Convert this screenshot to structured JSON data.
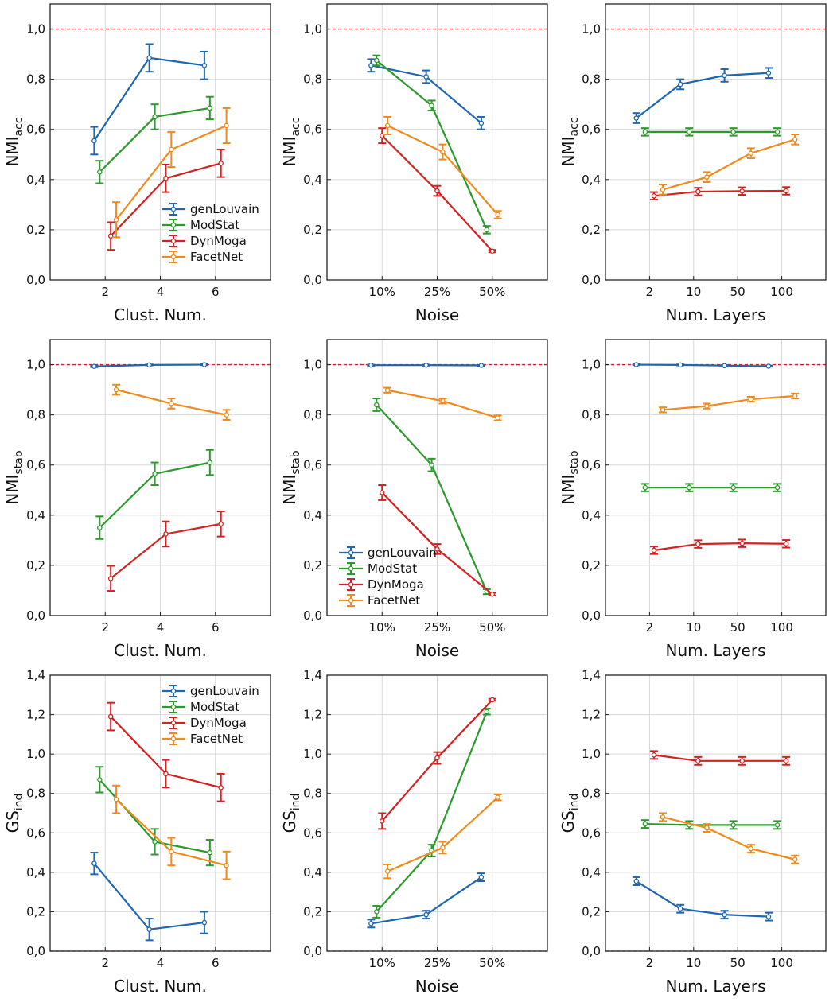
{
  "colors": {
    "genLouvain": "#1f66b0",
    "ModStat": "#2b9a2b",
    "DynMoga": "#d52020",
    "FacetNet": "#f08a1c",
    "reference": "#c62828",
    "grid": "#d8d8d8",
    "axis": "#222222"
  },
  "chart_data": [
    {
      "id": "acc-clust",
      "type": "line",
      "row": 0,
      "col": 0,
      "ylabel_main": "NMI",
      "ylabel_sub": "acc",
      "xlabel": "Clust. Num.",
      "ylim": [
        0,
        1.1
      ],
      "yticks": [
        "0,0",
        "0,2",
        "0,4",
        "0,6",
        "0,8",
        "1,0"
      ],
      "yvalues": [
        0,
        0.2,
        0.4,
        0.6,
        0.8,
        1.0
      ],
      "xlim": [
        0,
        8
      ],
      "xticks": [
        "2",
        "4",
        "6"
      ],
      "xtickpos": [
        2,
        4,
        6
      ],
      "reference": 1.0,
      "legend": "bottom-right",
      "series": [
        {
          "name": "genLouvain",
          "x": [
            1.6,
            3.6,
            5.6
          ],
          "y": [
            0.555,
            0.885,
            0.855
          ],
          "err": [
            0.055,
            0.055,
            0.055
          ]
        },
        {
          "name": "ModStat",
          "x": [
            1.8,
            3.8,
            5.8
          ],
          "y": [
            0.43,
            0.65,
            0.685
          ],
          "err": [
            0.045,
            0.05,
            0.045
          ]
        },
        {
          "name": "DynMoga",
          "x": [
            2.2,
            4.2,
            6.2
          ],
          "y": [
            0.175,
            0.405,
            0.465
          ],
          "err": [
            0.055,
            0.055,
            0.055
          ]
        },
        {
          "name": "FacetNet",
          "x": [
            2.4,
            4.4,
            6.4
          ],
          "y": [
            0.24,
            0.52,
            0.615
          ],
          "err": [
            0.07,
            0.07,
            0.07
          ]
        }
      ]
    },
    {
      "id": "acc-noise",
      "type": "line",
      "row": 0,
      "col": 1,
      "ylabel_main": "NMI",
      "ylabel_sub": "acc",
      "xlabel": "Noise",
      "ylim": [
        0,
        1.1
      ],
      "yticks": [
        "0,0",
        "0,2",
        "0,4",
        "0,6",
        "0,8",
        "1,0"
      ],
      "yvalues": [
        0,
        0.2,
        0.4,
        0.6,
        0.8,
        1.0
      ],
      "xlim": [
        0,
        4
      ],
      "xticks": [
        "10%",
        "25%",
        "50%"
      ],
      "xtickpos": [
        1,
        2,
        3
      ],
      "reference": 1.0,
      "legend": "none",
      "series": [
        {
          "name": "genLouvain",
          "x": [
            0.8,
            1.8,
            2.8
          ],
          "y": [
            0.855,
            0.81,
            0.625
          ],
          "err": [
            0.025,
            0.025,
            0.025
          ]
        },
        {
          "name": "ModStat",
          "x": [
            0.9,
            1.9,
            2.9
          ],
          "y": [
            0.875,
            0.695,
            0.2
          ],
          "err": [
            0.02,
            0.02,
            0.015
          ]
        },
        {
          "name": "DynMoga",
          "x": [
            1.0,
            2.0,
            3.0
          ],
          "y": [
            0.575,
            0.355,
            0.115
          ],
          "err": [
            0.03,
            0.02,
            0.005
          ]
        },
        {
          "name": "FacetNet",
          "x": [
            1.1,
            2.1,
            3.1
          ],
          "y": [
            0.615,
            0.51,
            0.26
          ],
          "err": [
            0.035,
            0.03,
            0.015
          ]
        }
      ]
    },
    {
      "id": "acc-layers",
      "type": "line",
      "row": 0,
      "col": 2,
      "ylabel_main": "NMI",
      "ylabel_sub": "acc",
      "xlabel": "Num. Layers",
      "ylim": [
        0,
        1.1
      ],
      "yticks": [
        "0,0",
        "0,2",
        "0,4",
        "0,6",
        "0,8",
        "1,0"
      ],
      "yvalues": [
        0,
        0.2,
        0.4,
        0.6,
        0.8,
        1.0
      ],
      "xlim": [
        0,
        5
      ],
      "xticks": [
        "2",
        "10",
        "50",
        "100"
      ],
      "xtickpos": [
        1,
        2,
        3,
        4
      ],
      "reference": 1.0,
      "legend": "none",
      "series": [
        {
          "name": "genLouvain",
          "x": [
            0.7,
            1.7,
            2.7,
            3.7
          ],
          "y": [
            0.645,
            0.78,
            0.815,
            0.825
          ],
          "err": [
            0.02,
            0.02,
            0.025,
            0.02
          ]
        },
        {
          "name": "ModStat",
          "x": [
            0.9,
            1.9,
            2.9,
            3.9
          ],
          "y": [
            0.59,
            0.59,
            0.59,
            0.59
          ],
          "err": [
            0.015,
            0.015,
            0.015,
            0.015
          ]
        },
        {
          "name": "DynMoga",
          "x": [
            1.1,
            2.1,
            3.1,
            4.1
          ],
          "y": [
            0.335,
            0.352,
            0.354,
            0.355
          ],
          "err": [
            0.015,
            0.015,
            0.015,
            0.015
          ]
        },
        {
          "name": "FacetNet",
          "x": [
            1.3,
            2.3,
            3.3,
            4.3
          ],
          "y": [
            0.36,
            0.41,
            0.505,
            0.56
          ],
          "err": [
            0.02,
            0.02,
            0.02,
            0.02
          ]
        }
      ]
    },
    {
      "id": "stab-clust",
      "type": "line",
      "row": 1,
      "col": 0,
      "ylabel_main": "NMI",
      "ylabel_sub": "stab",
      "xlabel": "Clust. Num.",
      "ylim": [
        0,
        1.1
      ],
      "yticks": [
        "0,0",
        "0,2",
        "0,4",
        "0,6",
        "0,8",
        "1,0"
      ],
      "yvalues": [
        0,
        0.2,
        0.4,
        0.6,
        0.8,
        1.0
      ],
      "xlim": [
        0,
        8
      ],
      "xticks": [
        "2",
        "4",
        "6"
      ],
      "xtickpos": [
        2,
        4,
        6
      ],
      "reference": 1.0,
      "legend": "none",
      "series": [
        {
          "name": "genLouvain",
          "x": [
            1.6,
            3.6,
            5.6
          ],
          "y": [
            0.993,
            0.999,
            1.0
          ],
          "err": [
            0.003,
            0.002,
            0.002
          ]
        },
        {
          "name": "ModStat",
          "x": [
            1.8,
            3.8,
            5.8
          ],
          "y": [
            0.35,
            0.565,
            0.61
          ],
          "err": [
            0.045,
            0.045,
            0.05
          ]
        },
        {
          "name": "DynMoga",
          "x": [
            2.2,
            4.2,
            6.2
          ],
          "y": [
            0.148,
            0.325,
            0.365
          ],
          "err": [
            0.05,
            0.05,
            0.05
          ]
        },
        {
          "name": "FacetNet",
          "x": [
            2.4,
            4.4,
            6.4
          ],
          "y": [
            0.9,
            0.845,
            0.8
          ],
          "err": [
            0.02,
            0.02,
            0.02
          ]
        }
      ]
    },
    {
      "id": "stab-noise",
      "type": "line",
      "row": 1,
      "col": 1,
      "ylabel_main": "NMI",
      "ylabel_sub": "stab",
      "xlabel": "Noise",
      "ylim": [
        0,
        1.1
      ],
      "yticks": [
        "0,0",
        "0,2",
        "0,4",
        "0,6",
        "0,8",
        "1,0"
      ],
      "yvalues": [
        0,
        0.2,
        0.4,
        0.6,
        0.8,
        1.0
      ],
      "xlim": [
        0,
        4
      ],
      "xticks": [
        "10%",
        "25%",
        "50%"
      ],
      "xtickpos": [
        1,
        2,
        3
      ],
      "reference": 1.0,
      "legend": "bottom-left",
      "series": [
        {
          "name": "genLouvain",
          "x": [
            0.8,
            1.8,
            2.8
          ],
          "y": [
            0.998,
            0.998,
            0.997
          ],
          "err": [
            0.002,
            0.002,
            0.002
          ]
        },
        {
          "name": "ModStat",
          "x": [
            0.9,
            1.9,
            2.9
          ],
          "y": [
            0.84,
            0.6,
            0.095
          ],
          "err": [
            0.025,
            0.025,
            0.01
          ]
        },
        {
          "name": "DynMoga",
          "x": [
            1.0,
            2.0,
            3.0
          ],
          "y": [
            0.49,
            0.265,
            0.085
          ],
          "err": [
            0.03,
            0.02,
            0.005
          ]
        },
        {
          "name": "FacetNet",
          "x": [
            1.1,
            2.1,
            3.1
          ],
          "y": [
            0.898,
            0.855,
            0.788
          ],
          "err": [
            0.01,
            0.01,
            0.01
          ]
        }
      ]
    },
    {
      "id": "stab-layers",
      "type": "line",
      "row": 1,
      "col": 2,
      "ylabel_main": "NMI",
      "ylabel_sub": "stab",
      "xlabel": "Num. Layers",
      "ylim": [
        0,
        1.1
      ],
      "yticks": [
        "0,0",
        "0,2",
        "0,4",
        "0,6",
        "0,8",
        "1,0"
      ],
      "yvalues": [
        0,
        0.2,
        0.4,
        0.6,
        0.8,
        1.0
      ],
      "xlim": [
        0,
        5
      ],
      "xticks": [
        "2",
        "10",
        "50",
        "100"
      ],
      "xtickpos": [
        1,
        2,
        3,
        4
      ],
      "reference": 1.0,
      "legend": "none",
      "series": [
        {
          "name": "genLouvain",
          "x": [
            0.7,
            1.7,
            2.7,
            3.7
          ],
          "y": [
            1.0,
            0.999,
            0.996,
            0.994
          ],
          "err": [
            0.002,
            0.002,
            0.002,
            0.002
          ]
        },
        {
          "name": "ModStat",
          "x": [
            0.9,
            1.9,
            2.9,
            3.9
          ],
          "y": [
            0.51,
            0.51,
            0.51,
            0.51
          ],
          "err": [
            0.015,
            0.015,
            0.015,
            0.015
          ]
        },
        {
          "name": "DynMoga",
          "x": [
            1.1,
            2.1,
            3.1,
            4.1
          ],
          "y": [
            0.26,
            0.285,
            0.288,
            0.286
          ],
          "err": [
            0.015,
            0.015,
            0.015,
            0.015
          ]
        },
        {
          "name": "FacetNet",
          "x": [
            1.3,
            2.3,
            3.3,
            4.3
          ],
          "y": [
            0.82,
            0.835,
            0.862,
            0.875
          ],
          "err": [
            0.01,
            0.01,
            0.01,
            0.01
          ]
        }
      ]
    },
    {
      "id": "gs-clust",
      "type": "line",
      "row": 2,
      "col": 0,
      "ylabel_main": "GS",
      "ylabel_sub": "ind",
      "xlabel": "Clust. Num.",
      "ylim": [
        0,
        1.4
      ],
      "yticks": [
        "0,0",
        "0,2",
        "0,4",
        "0,6",
        "0,8",
        "1,0",
        "1,2",
        "1,4"
      ],
      "yvalues": [
        0,
        0.2,
        0.4,
        0.6,
        0.8,
        1.0,
        1.2,
        1.4
      ],
      "xlim": [
        0,
        8
      ],
      "xticks": [
        "2",
        "4",
        "6"
      ],
      "xtickpos": [
        2,
        4,
        6
      ],
      "reference": 0.0,
      "legend": "top-right",
      "series": [
        {
          "name": "genLouvain",
          "x": [
            1.6,
            3.6,
            5.6
          ],
          "y": [
            0.445,
            0.11,
            0.145
          ],
          "err": [
            0.055,
            0.055,
            0.055
          ]
        },
        {
          "name": "ModStat",
          "x": [
            1.8,
            3.8,
            5.8
          ],
          "y": [
            0.87,
            0.555,
            0.5
          ],
          "err": [
            0.065,
            0.065,
            0.065
          ]
        },
        {
          "name": "DynMoga",
          "x": [
            2.2,
            4.2,
            6.2
          ],
          "y": [
            1.19,
            0.9,
            0.83
          ],
          "err": [
            0.07,
            0.07,
            0.07
          ]
        },
        {
          "name": "FacetNet",
          "x": [
            2.4,
            4.4,
            6.4
          ],
          "y": [
            0.77,
            0.505,
            0.435
          ],
          "err": [
            0.07,
            0.07,
            0.07
          ]
        }
      ]
    },
    {
      "id": "gs-noise",
      "type": "line",
      "row": 2,
      "col": 1,
      "ylabel_main": "GS",
      "ylabel_sub": "ind",
      "xlabel": "Noise",
      "ylim": [
        0,
        1.4
      ],
      "yticks": [
        "0,0",
        "0,2",
        "0,4",
        "0,6",
        "0,8",
        "1,0",
        "1,2",
        "1,4"
      ],
      "yvalues": [
        0,
        0.2,
        0.4,
        0.6,
        0.8,
        1.0,
        1.2,
        1.4
      ],
      "xlim": [
        0,
        4
      ],
      "xticks": [
        "10%",
        "25%",
        "50%"
      ],
      "xtickpos": [
        1,
        2,
        3
      ],
      "reference": 0.0,
      "legend": "none",
      "series": [
        {
          "name": "genLouvain",
          "x": [
            0.8,
            1.8,
            2.8
          ],
          "y": [
            0.14,
            0.185,
            0.375
          ],
          "err": [
            0.02,
            0.02,
            0.02
          ]
        },
        {
          "name": "ModStat",
          "x": [
            0.9,
            1.9,
            2.9
          ],
          "y": [
            0.2,
            0.51,
            1.215
          ],
          "err": [
            0.03,
            0.03,
            0.015
          ]
        },
        {
          "name": "DynMoga",
          "x": [
            1.0,
            2.0,
            3.0
          ],
          "y": [
            0.66,
            0.98,
            1.275
          ],
          "err": [
            0.04,
            0.03,
            0.005
          ]
        },
        {
          "name": "FacetNet",
          "x": [
            1.1,
            2.1,
            3.1
          ],
          "y": [
            0.405,
            0.525,
            0.78
          ],
          "err": [
            0.035,
            0.03,
            0.015
          ]
        }
      ]
    },
    {
      "id": "gs-layers",
      "type": "line",
      "row": 2,
      "col": 2,
      "ylabel_main": "GS",
      "ylabel_sub": "ind",
      "xlabel": "Num. Layers",
      "ylim": [
        0,
        1.4
      ],
      "yticks": [
        "0,0",
        "0,2",
        "0,4",
        "0,6",
        "0,8",
        "1,0",
        "1,2",
        "1,4"
      ],
      "yvalues": [
        0,
        0.2,
        0.4,
        0.6,
        0.8,
        1.0,
        1.2,
        1.4
      ],
      "xlim": [
        0,
        5
      ],
      "xticks": [
        "2",
        "10",
        "50",
        "100"
      ],
      "xtickpos": [
        1,
        2,
        3,
        4
      ],
      "reference": 0.0,
      "legend": "none",
      "series": [
        {
          "name": "genLouvain",
          "x": [
            0.7,
            1.7,
            2.7,
            3.7
          ],
          "y": [
            0.355,
            0.215,
            0.185,
            0.175
          ],
          "err": [
            0.02,
            0.02,
            0.02,
            0.02
          ]
        },
        {
          "name": "ModStat",
          "x": [
            0.9,
            1.9,
            2.9,
            3.9
          ],
          "y": [
            0.645,
            0.64,
            0.64,
            0.64
          ],
          "err": [
            0.02,
            0.02,
            0.02,
            0.02
          ]
        },
        {
          "name": "DynMoga",
          "x": [
            1.1,
            2.1,
            3.1,
            4.1
          ],
          "y": [
            0.995,
            0.965,
            0.965,
            0.965
          ],
          "err": [
            0.02,
            0.02,
            0.02,
            0.02
          ]
        },
        {
          "name": "FacetNet",
          "x": [
            1.3,
            2.3,
            3.3,
            4.3
          ],
          "y": [
            0.68,
            0.625,
            0.52,
            0.465
          ],
          "err": [
            0.02,
            0.02,
            0.02,
            0.02
          ]
        }
      ]
    }
  ]
}
